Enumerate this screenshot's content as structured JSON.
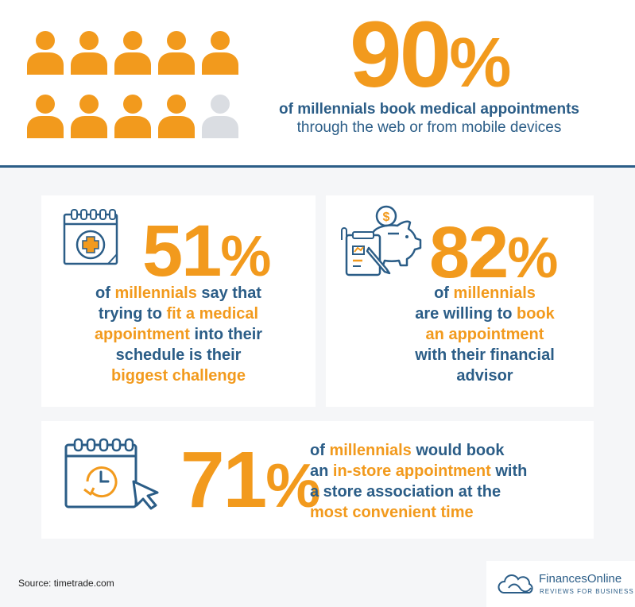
{
  "colors": {
    "accent": "#f29a1d",
    "primary": "#2b5d87",
    "muted": "#dadde2"
  },
  "header": {
    "people_icons": {
      "total": 10,
      "highlighted": 9
    },
    "stat": "90",
    "pct": "%",
    "line1": "of millennials book medical appointments",
    "line2": "through the web or from mobile devices"
  },
  "card51": {
    "stat": "51",
    "pct": "%",
    "icon": "calendar-medical-icon",
    "t1_hl": "millennials",
    "t1": "of ",
    "t2": " say that",
    "t3": "trying to ",
    "t3_hl": "fit a medical",
    "t4_hl": "appointment",
    "t4": " into their",
    "t5": "schedule is their",
    "t6_hl": "biggest challenge"
  },
  "card82": {
    "stat": "82",
    "pct": "%",
    "icon": "piggy-bank-icon",
    "t1": "of ",
    "t1_hl": "millennials",
    "t2": "are willing to ",
    "t2_hl": "book",
    "t3_hl": "an appointment",
    "t4": "with their financial",
    "t5": "advisor"
  },
  "card71": {
    "stat": "71",
    "pct": "%",
    "icon": "calendar-clock-icon",
    "t1": "of ",
    "t1_hl": "millennials",
    "t1b": " would book",
    "t2": "an ",
    "t2_hl": "in-store appointment",
    "t2b": " with",
    "t3": "a store association at the",
    "t4_hl": "most convenient time"
  },
  "footer": {
    "source": "Source: timetrade.com",
    "brand": "FinancesOnline",
    "tagline": "REVIEWS FOR BUSINESS"
  }
}
